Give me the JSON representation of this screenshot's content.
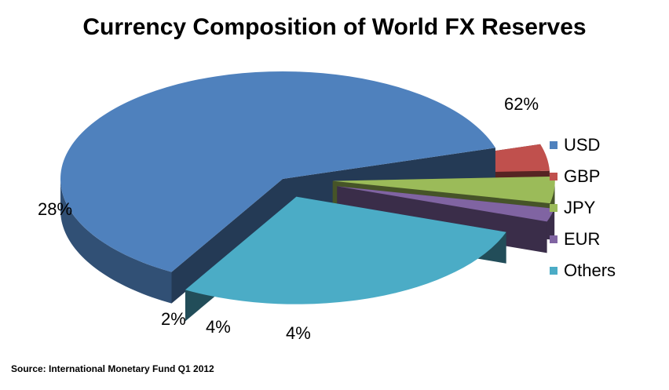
{
  "title": "Currency Composition of World FX Reserves",
  "source": "Source: International Monetary Fund Q1 2012",
  "chart_data": {
    "type": "pie",
    "title": "Currency Composition of World FX Reserves",
    "three_d": true,
    "exploded": true,
    "legend_position": "right",
    "categories": [
      "USD",
      "GBP",
      "JPY",
      "EUR",
      "Others"
    ],
    "values": [
      62,
      4,
      4,
      2,
      28
    ],
    "labels": [
      "62%",
      "4%",
      "4%",
      "2%",
      "28%"
    ],
    "colors": [
      "#4F81BD",
      "#C0504D",
      "#9BBB59",
      "#8064A2",
      "#4BACC6"
    ]
  }
}
